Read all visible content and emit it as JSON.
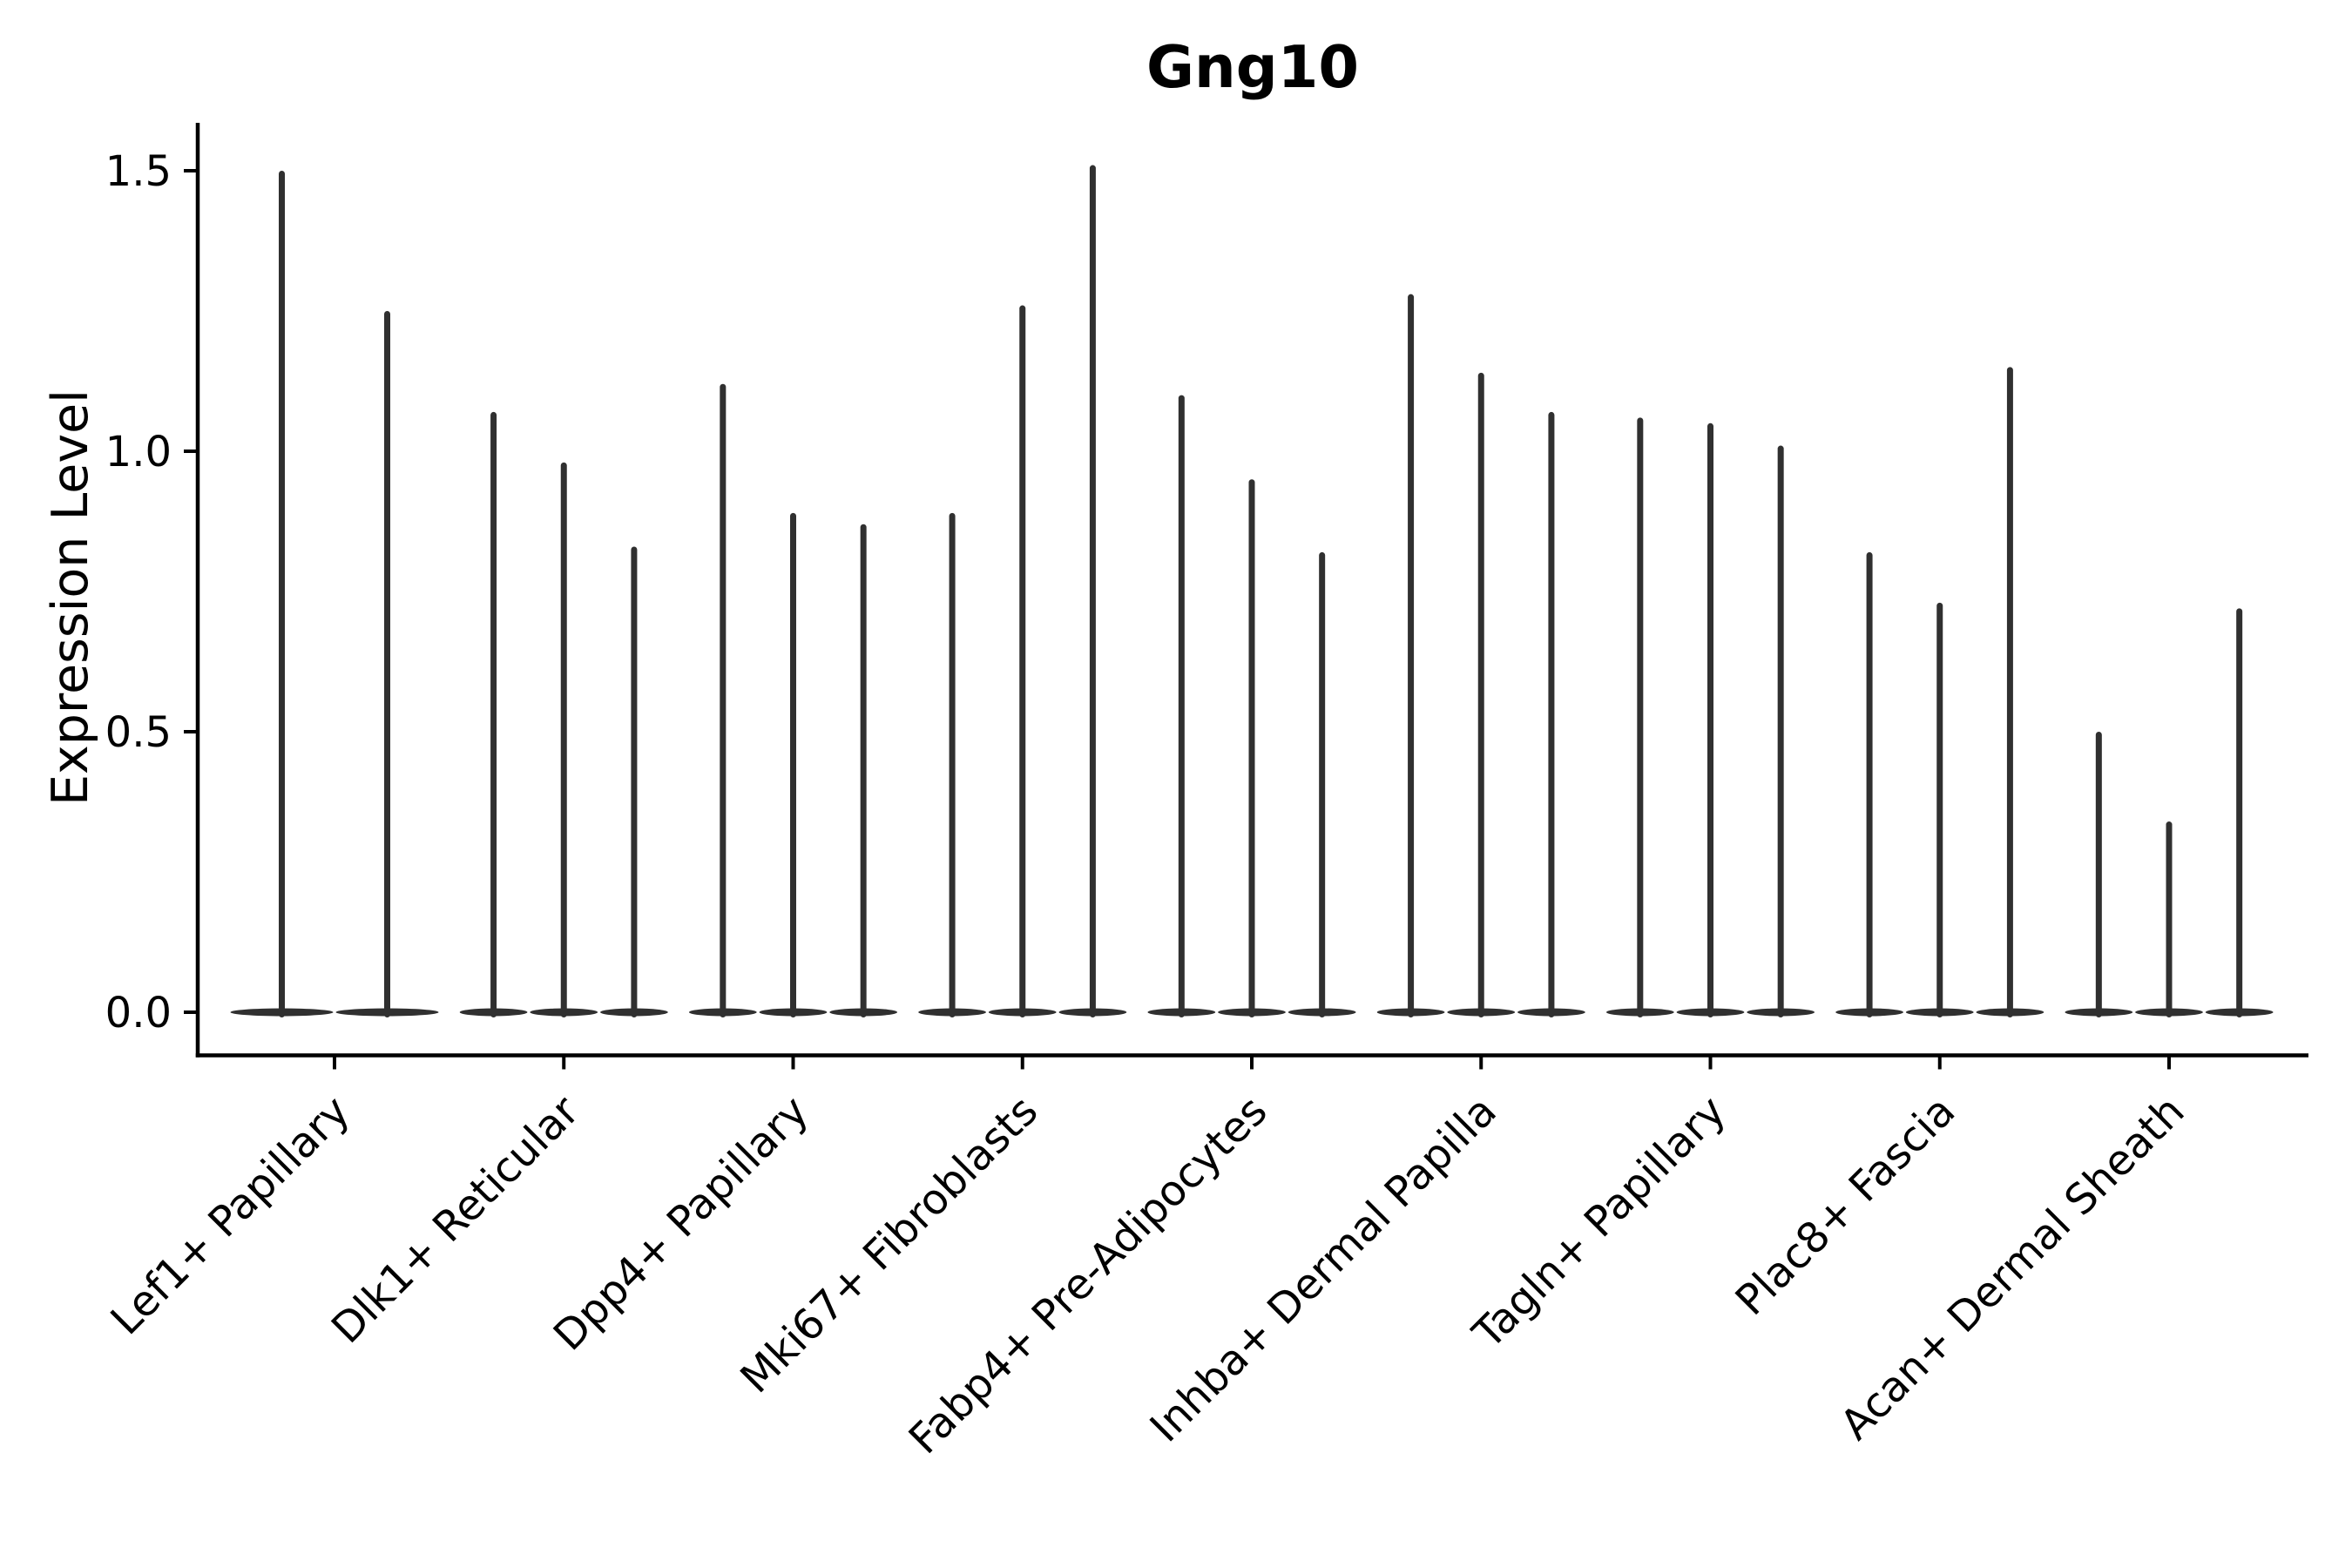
{
  "chart_data": {
    "type": "violin",
    "title": "Gng10",
    "ylabel": "Expression Level",
    "xlabel": "",
    "grid": false,
    "legend": false,
    "ylim": [
      -0.08,
      1.59
    ],
    "ytick_labels": [
      "0.0",
      "0.5",
      "1.0",
      "1.5"
    ],
    "ytick_values": [
      0.0,
      0.5,
      1.0,
      1.5
    ],
    "violin_color": "#303030",
    "axis_color": "#000000",
    "categories": [
      "Lef1+ Papillary",
      "Dlk1+ Reticular",
      "Dpp4+ Papillary",
      "Mki67+ Fibroblasts",
      "Fabp4+ Pre-Adipocytes",
      "Inhba+ Dermal Papilla",
      "Tagln+ Papillary",
      "Plac8+ Fascia",
      "Acan+ Dermal Sheath"
    ],
    "series": [
      {
        "category": "Lef1+ Papillary",
        "violin_peaks": [
          1.5,
          1.25
        ]
      },
      {
        "category": "Dlk1+ Reticular",
        "violin_peaks": [
          1.07,
          0.98,
          0.83
        ]
      },
      {
        "category": "Dpp4+ Papillary",
        "violin_peaks": [
          1.12,
          0.89,
          0.87
        ]
      },
      {
        "category": "Mki67+ Fibroblasts",
        "violin_peaks": [
          0.89,
          1.26,
          1.51
        ]
      },
      {
        "category": "Fabp4+ Pre-Adipocytes",
        "violin_peaks": [
          1.1,
          0.95,
          0.82
        ]
      },
      {
        "category": "Inhba+ Dermal Papilla",
        "violin_peaks": [
          1.28,
          1.14,
          1.07
        ]
      },
      {
        "category": "Tagln+ Papillary",
        "violin_peaks": [
          1.06,
          1.05,
          1.01
        ]
      },
      {
        "category": "Plac8+ Fascia",
        "violin_peaks": [
          0.82,
          0.73,
          1.15
        ]
      },
      {
        "category": "Acan+ Dermal Sheath",
        "violin_peaks": [
          0.5,
          0.34,
          0.72
        ]
      }
    ]
  }
}
